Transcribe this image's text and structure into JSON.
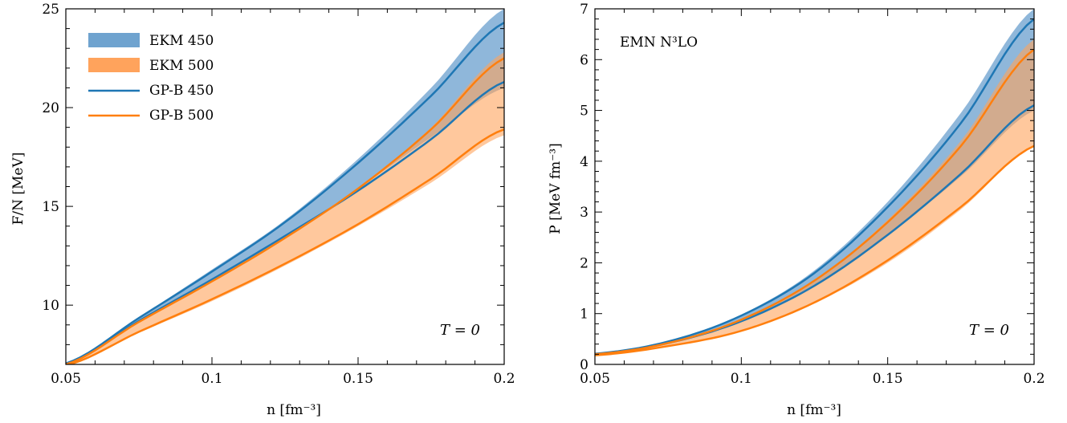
{
  "colors": {
    "blue_band": "#6fa3cf",
    "orange_band": "#ffa35c",
    "blue_line": "#1f77b4",
    "orange_line": "#ff7f0e"
  },
  "chart_data": [
    {
      "type": "area",
      "xlabel": "n [fm⁻³]",
      "ylabel": "F/N [MeV]",
      "xlim": [
        0.05,
        0.2
      ],
      "ylim": [
        7,
        25
      ],
      "xticks": [
        "0.05",
        "0.1",
        "0.15",
        "0.2"
      ],
      "yticks": [
        "10",
        "15",
        "20",
        "25"
      ],
      "legend_position": "upper-left",
      "annotation": "T = 0",
      "legend": [
        {
          "label": "EKM 450",
          "kind": "band",
          "color": "#6fa3cf"
        },
        {
          "label": "EKM 500",
          "kind": "band",
          "color": "#ffa35c"
        },
        {
          "label": "GP-B 450",
          "kind": "line",
          "color": "#1f77b4"
        },
        {
          "label": "GP-B 500",
          "kind": "line",
          "color": "#ff7f0e"
        }
      ],
      "x": [
        0.05,
        0.075,
        0.1,
        0.125,
        0.15,
        0.175,
        0.2
      ],
      "series": [
        {
          "name": "EKM 450",
          "kind": "band",
          "lower": [
            7.0,
            9.2,
            11.3,
            13.5,
            15.9,
            18.5,
            21.0
          ],
          "upper": [
            7.1,
            9.4,
            11.8,
            14.3,
            17.4,
            21.0,
            25.0
          ]
        },
        {
          "name": "EKM 500",
          "kind": "band",
          "lower": [
            6.95,
            8.6,
            10.2,
            12.0,
            14.0,
            16.2,
            18.6
          ],
          "upper": [
            7.0,
            9.2,
            11.2,
            13.4,
            15.9,
            19.0,
            22.8
          ]
        },
        {
          "name": "GP-B 450",
          "kind": "line",
          "bounds": "upper",
          "values": [
            7.05,
            9.35,
            11.7,
            14.2,
            17.2,
            20.6,
            24.3
          ]
        },
        {
          "name": "GP-B 450",
          "kind": "line",
          "bounds": "lower",
          "values": [
            7.0,
            9.2,
            11.3,
            13.5,
            15.8,
            18.4,
            21.3
          ]
        },
        {
          "name": "GP-B 500",
          "kind": "line",
          "bounds": "upper",
          "values": [
            7.0,
            9.15,
            11.2,
            13.4,
            15.9,
            18.9,
            22.5
          ]
        },
        {
          "name": "GP-B 500",
          "kind": "line",
          "bounds": "lower",
          "values": [
            6.95,
            8.65,
            10.3,
            12.1,
            14.1,
            16.4,
            18.9
          ]
        }
      ]
    },
    {
      "type": "area",
      "xlabel": "n [fm⁻³]",
      "ylabel": "P [MeV fm⁻³]",
      "xlim": [
        0.05,
        0.2
      ],
      "ylim": [
        0,
        7
      ],
      "xticks": [
        "0.05",
        "0.1",
        "0.15",
        "0.2"
      ],
      "yticks": [
        "0",
        "1",
        "2",
        "3",
        "4",
        "5",
        "6",
        "7"
      ],
      "label": "EMN N³LO",
      "annotation": "T = 0",
      "x": [
        0.05,
        0.075,
        0.1,
        0.125,
        0.15,
        0.175,
        0.2
      ],
      "series": [
        {
          "name": "EKM 450",
          "kind": "band",
          "lower": [
            0.2,
            0.42,
            0.85,
            1.55,
            2.55,
            3.7,
            5.0
          ],
          "upper": [
            0.22,
            0.46,
            0.98,
            1.85,
            3.2,
            4.95,
            7.0
          ]
        },
        {
          "name": "EKM 500",
          "kind": "band",
          "lower": [
            0.17,
            0.35,
            0.65,
            1.2,
            2.0,
            3.05,
            4.3
          ],
          "upper": [
            0.2,
            0.42,
            0.88,
            1.65,
            2.85,
            4.4,
            6.4
          ]
        },
        {
          "name": "GP-B 450",
          "kind": "line",
          "bounds": "upper",
          "values": [
            0.21,
            0.45,
            0.96,
            1.8,
            3.1,
            4.75,
            6.8
          ]
        },
        {
          "name": "GP-B 450",
          "kind": "line",
          "bounds": "lower",
          "values": [
            0.2,
            0.42,
            0.85,
            1.55,
            2.55,
            3.75,
            5.1
          ]
        },
        {
          "name": "GP-B 500",
          "kind": "line",
          "bounds": "upper",
          "values": [
            0.2,
            0.42,
            0.88,
            1.65,
            2.8,
            4.3,
            6.2
          ]
        },
        {
          "name": "GP-B 500",
          "kind": "line",
          "bounds": "lower",
          "values": [
            0.18,
            0.36,
            0.66,
            1.22,
            2.05,
            3.1,
            4.3
          ]
        }
      ]
    }
  ]
}
